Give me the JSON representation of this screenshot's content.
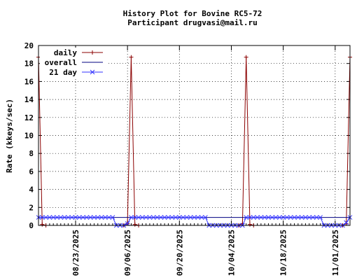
{
  "chart_data": {
    "type": "line",
    "title": "History Plot for Bovine RC5-72",
    "subtitle": "Participant drugvasi@mail.ru",
    "ylabel": "Rate (kkeys/sec)",
    "xlabel": "",
    "ylim": [
      0,
      20
    ],
    "yticks": [
      0,
      2,
      4,
      6,
      8,
      10,
      12,
      14,
      16,
      18,
      20
    ],
    "xlim": [
      "2025-08-13",
      "2025-11-05"
    ],
    "xticks": [
      "08/23/2025",
      "09/06/2025",
      "09/20/2025",
      "10/04/2025",
      "10/18/2025",
      "11/01/2025"
    ],
    "grid": true,
    "legend": "top-left",
    "series": [
      {
        "name": "daily",
        "color": "#8b0000",
        "marker": "plus",
        "points": [
          [
            "2025-08-13",
            18.7
          ],
          [
            "2025-08-14",
            0.1
          ],
          [
            "2025-08-15",
            0
          ],
          [
            "2025-09-05",
            0
          ],
          [
            "2025-09-06",
            0.2
          ],
          [
            "2025-09-07",
            18.7
          ],
          [
            "2025-09-08",
            0.1
          ],
          [
            "2025-09-09",
            0
          ],
          [
            "2025-10-06",
            0
          ],
          [
            "2025-10-07",
            0.2
          ],
          [
            "2025-10-08",
            18.7
          ],
          [
            "2025-10-09",
            0.1
          ],
          [
            "2025-10-10",
            0
          ],
          [
            "2025-11-03",
            0
          ],
          [
            "2025-11-04",
            0.2
          ],
          [
            "2025-11-05",
            18.7
          ]
        ]
      },
      {
        "name": "overall",
        "color": "#000080",
        "marker": "none",
        "points": [
          [
            "2025-08-13",
            0.89
          ],
          [
            "2025-11-05",
            0.89
          ]
        ]
      },
      {
        "name": "21 day",
        "color": "#3333ff",
        "marker": "x",
        "points": [
          [
            "2025-08-13",
            0.89
          ],
          [
            "2025-09-02",
            0.89
          ],
          [
            "2025-09-03",
            0
          ],
          [
            "2025-09-05",
            0
          ],
          [
            "2025-09-06",
            0.2
          ],
          [
            "2025-09-07",
            0.89
          ],
          [
            "2025-09-27",
            0.89
          ],
          [
            "2025-09-28",
            0
          ],
          [
            "2025-10-07",
            0
          ],
          [
            "2025-10-08",
            0.89
          ],
          [
            "2025-10-28",
            0.89
          ],
          [
            "2025-10-29",
            0
          ],
          [
            "2025-11-03",
            0
          ],
          [
            "2025-11-04",
            0.3
          ],
          [
            "2025-11-05",
            0.89
          ]
        ]
      }
    ]
  }
}
